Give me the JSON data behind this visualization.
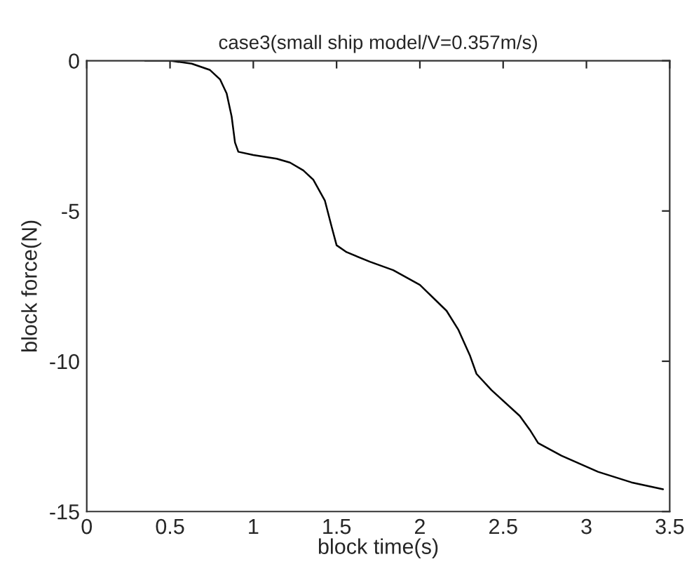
{
  "chart_data": {
    "type": "line",
    "title": "case3(small ship model/V=0.357m/s)",
    "xlabel": "block time(s)",
    "ylabel": "block force(N)",
    "xlim": [
      0,
      3.5
    ],
    "ylim": [
      -15,
      0
    ],
    "xticks": [
      0,
      0.5,
      1,
      1.5,
      2,
      2.5,
      3,
      3.5
    ],
    "yticks": [
      -15,
      -10,
      -5,
      0
    ],
    "grid": false,
    "legend": false,
    "series": [
      {
        "color": "#000000",
        "x": [
          0.35,
          0.5,
          0.63,
          0.74,
          0.8,
          0.84,
          0.87,
          0.89,
          0.91,
          1.0,
          1.14,
          1.22,
          1.3,
          1.36,
          1.43,
          1.47,
          1.5,
          1.56,
          1.7,
          1.84,
          2.0,
          2.16,
          2.23,
          2.3,
          2.34,
          2.43,
          2.6,
          2.66,
          2.71,
          2.85,
          3.07,
          3.27,
          3.46
        ],
        "values": [
          0,
          0,
          -0.1,
          -0.31,
          -0.62,
          -1.09,
          -1.86,
          -2.72,
          -3.03,
          -3.14,
          -3.26,
          -3.39,
          -3.65,
          -3.96,
          -4.66,
          -5.52,
          -6.14,
          -6.37,
          -6.69,
          -6.97,
          -7.46,
          -8.32,
          -8.94,
          -9.8,
          -10.42,
          -10.96,
          -11.82,
          -12.28,
          -12.72,
          -13.14,
          -13.68,
          -14.03,
          -14.26
        ]
      }
    ]
  }
}
